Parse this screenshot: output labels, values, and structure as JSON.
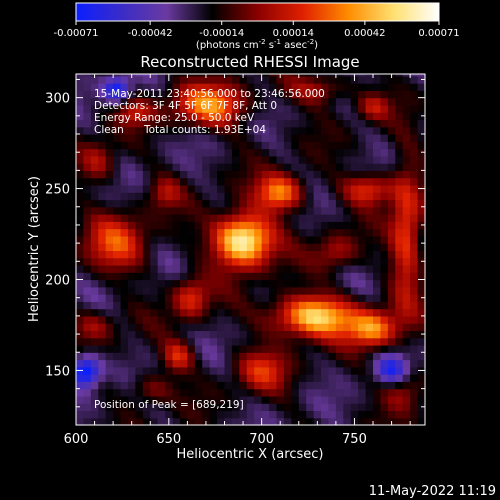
{
  "colors": {
    "background": "#000000",
    "foreground": "#ffffff"
  },
  "colorbar": {
    "min": -0.00071,
    "max": 0.00071,
    "tick_values": [
      -0.00071,
      -0.00042,
      -0.00014,
      0.00014,
      0.00042,
      0.00071
    ],
    "tick_labels": [
      "-0.00071",
      "-0.00042",
      "-0.00014",
      "0.00014",
      "0.00042",
      "0.00071"
    ],
    "units_prefix": "(photons cm",
    "units_exp1": "-2",
    "units_mid": " s",
    "units_exp2": "-1",
    "units_mid2": " asec",
    "units_exp3": "-2",
    "units_suffix": ")",
    "colormap": [
      "#0b1fff",
      "#3a2cc8",
      "#6a3aa0",
      "#000000",
      "#8a0000",
      "#e02000",
      "#ff8c00",
      "#ffe070",
      "#ffffff"
    ]
  },
  "chart_data": {
    "type": "heatmap",
    "title": "Reconstructed RHESSI Image",
    "xlabel": "Heliocentric X (arcsec)",
    "ylabel": "Heliocentric Y (arcsec)",
    "xlim": [
      600,
      788
    ],
    "ylim": [
      120,
      313
    ],
    "x_ticks": [
      600,
      650,
      700,
      750
    ],
    "y_ticks": [
      150,
      200,
      250,
      300
    ],
    "x_tick_labels": [
      "600",
      "650",
      "700",
      "750"
    ],
    "y_tick_labels": [
      "150",
      "200",
      "250",
      "300"
    ],
    "peak": {
      "x": 689,
      "y": 219
    },
    "sources": [
      {
        "x": 690,
        "y": 222,
        "sx": 11,
        "sy": 10,
        "amp": 0.00068
      },
      {
        "x": 710,
        "y": 248,
        "sx": 9,
        "sy": 7,
        "amp": 0.00042
      },
      {
        "x": 728,
        "y": 180,
        "sx": 16,
        "sy": 8,
        "amp": 0.00055
      },
      {
        "x": 760,
        "y": 173,
        "sx": 9,
        "sy": 7,
        "amp": 0.0004
      },
      {
        "x": 672,
        "y": 296,
        "sx": 14,
        "sy": 8,
        "amp": 0.0004
      },
      {
        "x": 758,
        "y": 250,
        "sx": 10,
        "sy": 6,
        "amp": 0.0003
      },
      {
        "x": 778,
        "y": 225,
        "sx": 6,
        "sy": 28,
        "amp": 0.00032
      },
      {
        "x": 622,
        "y": 220,
        "sx": 12,
        "sy": 11,
        "amp": 0.0003
      },
      {
        "x": 612,
        "y": 265,
        "sx": 7,
        "sy": 8,
        "amp": 0.00022
      },
      {
        "x": 662,
        "y": 190,
        "sx": 7,
        "sy": 8,
        "amp": 0.00028
      },
      {
        "x": 655,
        "y": 158,
        "sx": 6,
        "sy": 6,
        "amp": 0.00028
      },
      {
        "x": 632,
        "y": 292,
        "sx": 7,
        "sy": 5,
        "amp": 0.0002
      },
      {
        "x": 700,
        "y": 150,
        "sx": 10,
        "sy": 8,
        "amp": 0.00025
      },
      {
        "x": 730,
        "y": 305,
        "sx": 12,
        "sy": 6,
        "amp": 0.00022
      },
      {
        "x": 760,
        "y": 295,
        "sx": 6,
        "sy": 5,
        "amp": 0.0002
      },
      {
        "x": 640,
        "y": 140,
        "sx": 8,
        "sy": 6,
        "amp": 0.00018
      },
      {
        "x": 776,
        "y": 140,
        "sx": 8,
        "sy": 8,
        "amp": 0.0002
      },
      {
        "x": 610,
        "y": 175,
        "sx": 8,
        "sy": 6,
        "amp": 0.00018
      },
      {
        "x": 740,
        "y": 215,
        "sx": 8,
        "sy": 7,
        "amp": 0.0002
      },
      {
        "x": 648,
        "y": 248,
        "sx": 6,
        "sy": 6,
        "amp": 0.00018
      },
      {
        "x": 605,
        "y": 150,
        "sx": 6,
        "sy": 6,
        "amp": -0.00045
      },
      {
        "x": 622,
        "y": 305,
        "sx": 5,
        "sy": 5,
        "amp": -0.00035
      },
      {
        "x": 770,
        "y": 150,
        "sx": 6,
        "sy": 6,
        "amp": -0.0003
      }
    ],
    "background_level": -0.00022,
    "grid": false
  },
  "annotations": {
    "line1": "15-May-2011 23:40:56.000 to 23:46:56.000",
    "line2": "Detectors: 3F 4F 5F 6F 7F 8F, Att 0",
    "line3": "Energy Range: 25.0 - 50.0 keV",
    "line4_a": "Clean",
    "line4_b": "Total counts: 1.93E+04",
    "peak_text": "Position of Peak = [689,219]"
  },
  "footer": {
    "timestamp": "11-May-2022 11:19"
  }
}
